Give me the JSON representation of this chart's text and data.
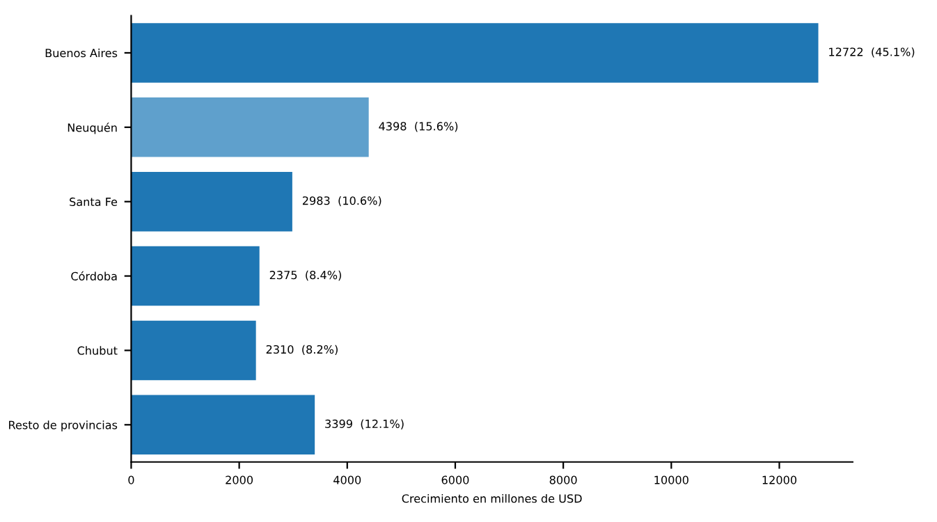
{
  "chart_data": {
    "type": "bar",
    "orientation": "horizontal",
    "xlabel": "Crecimiento en millones de USD",
    "categories": [
      "Buenos Aires",
      "Neuquén",
      "Santa Fe",
      "Córdoba",
      "Chubut",
      "Resto de provincias"
    ],
    "values": [
      12722,
      4398,
      2983,
      2375,
      2310,
      3399
    ],
    "colors": [
      "#1f77b4",
      "#5fa0cc",
      "#1f77b4",
      "#1f77b4",
      "#1f77b4",
      "#1f77b4"
    ],
    "value_labels": [
      "12722  (45.1%)",
      "4398  (15.6%)",
      "2983  (10.6%)",
      "2375  (8.4%)",
      "2310  (8.2%)",
      "3399  (12.1%)"
    ],
    "xlim": [
      0,
      13358
    ],
    "xticks": [
      0,
      2000,
      4000,
      6000,
      8000,
      10000,
      12000
    ],
    "grid": false
  }
}
